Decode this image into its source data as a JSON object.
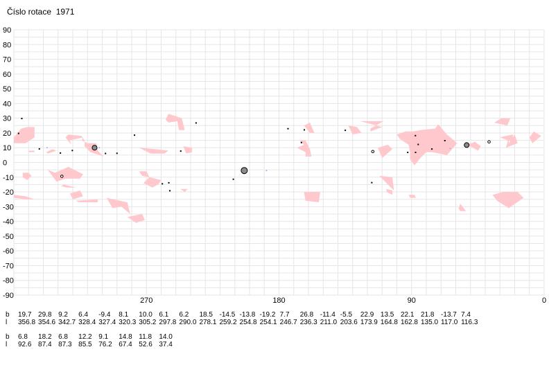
{
  "title": "Číslo rotace  1971",
  "chart_data": {
    "type": "scatter",
    "title": "Číslo rotace  1971",
    "xlabel": "",
    "ylabel": "",
    "xlim": [
      360,
      0
    ],
    "ylim": [
      -90,
      90
    ],
    "x_ticks": [
      "270",
      "180",
      "90",
      "0"
    ],
    "y_ticks": [
      "90",
      "80",
      "70",
      "60",
      "50",
      "40",
      "30",
      "20",
      "10",
      "0",
      "-10",
      "-20",
      "-30",
      "-40",
      "-50",
      "-60",
      "-70",
      "-80",
      "-90"
    ],
    "grid": true,
    "regions_color": "#ffc8cd",
    "regions": [
      {
        "name": "r1",
        "polygon": [
          [
            360,
            17
          ],
          [
            355,
            23
          ],
          [
            351,
            24
          ],
          [
            346,
            24
          ],
          [
            346,
            17
          ],
          [
            352,
            13
          ],
          [
            360,
            13
          ]
        ]
      },
      {
        "name": "r2",
        "polygon": [
          [
            350,
            8
          ],
          [
            346,
            8
          ],
          [
            346,
            7
          ],
          [
            350,
            7
          ]
        ]
      },
      {
        "name": "r3",
        "polygon": [
          [
            354,
            -7
          ],
          [
            350,
            -7
          ],
          [
            348,
            -9
          ],
          [
            351,
            -12
          ],
          [
            354,
            -10
          ]
        ]
      },
      {
        "name": "r4",
        "polygon": [
          [
            360,
            -22
          ],
          [
            352,
            -23
          ],
          [
            346,
            -25
          ],
          [
            352,
            -25
          ],
          [
            360,
            -24
          ]
        ]
      },
      {
        "name": "r5",
        "polygon": [
          [
            338,
            7
          ],
          [
            334,
            9
          ],
          [
            331,
            8
          ],
          [
            337,
            6
          ]
        ]
      },
      {
        "name": "r6",
        "polygon": [
          [
            325,
            17
          ],
          [
            323,
            19
          ],
          [
            314,
            18
          ],
          [
            312,
            15
          ],
          [
            312,
            11
          ],
          [
            308,
            7
          ],
          [
            299,
            4
          ],
          [
            303,
            8
          ],
          [
            304,
            13
          ],
          [
            310,
            13
          ],
          [
            314,
            15
          ],
          [
            313,
            17
          ],
          [
            322,
            15
          ],
          [
            321,
            12
          ]
        ]
      },
      {
        "name": "r7",
        "polygon": [
          [
            337,
            -5
          ],
          [
            331,
            -13
          ],
          [
            325,
            -11
          ],
          [
            315,
            -11
          ],
          [
            313,
            -8
          ],
          [
            319,
            -5
          ],
          [
            323,
            -3
          ],
          [
            332,
            -7
          ]
        ]
      },
      {
        "name": "r8",
        "polygon": [
          [
            328,
            -16
          ],
          [
            324,
            -17
          ],
          [
            318,
            -17
          ],
          [
            326,
            -15
          ]
        ]
      },
      {
        "name": "r9",
        "polygon": [
          [
            322,
            -21
          ],
          [
            315,
            -19
          ],
          [
            313,
            -23
          ],
          [
            320,
            -25
          ]
        ]
      },
      {
        "name": "r10",
        "polygon": [
          [
            318,
            -26
          ],
          [
            303,
            -25
          ],
          [
            303,
            -27
          ],
          [
            316,
            -27
          ]
        ]
      },
      {
        "name": "r11",
        "polygon": [
          [
            297,
            -24
          ],
          [
            283,
            -27
          ],
          [
            281,
            -35
          ],
          [
            287,
            -30
          ],
          [
            293,
            -31
          ]
        ]
      },
      {
        "name": "r12",
        "polygon": [
          [
            283,
            -37
          ],
          [
            273,
            -35
          ],
          [
            271,
            -39
          ],
          [
            277,
            -41
          ]
        ]
      },
      {
        "name": "r13",
        "polygon": [
          [
            275,
            -6
          ],
          [
            270,
            -6
          ],
          [
            268,
            -10
          ],
          [
            273,
            -9
          ]
        ]
      },
      {
        "name": "r14",
        "polygon": [
          [
            272,
            -14
          ],
          [
            266,
            -17
          ],
          [
            262,
            -15
          ],
          [
            260,
            -12
          ],
          [
            268,
            -10
          ]
        ]
      },
      {
        "name": "r15",
        "polygon": [
          [
            275,
            10
          ],
          [
            264,
            9
          ],
          [
            255,
            8
          ],
          [
            258,
            6
          ],
          [
            267,
            6
          ]
        ]
      },
      {
        "name": "r16",
        "polygon": [
          [
            255,
            33
          ],
          [
            246,
            30
          ],
          [
            244,
            22
          ],
          [
            248,
            22
          ],
          [
            249,
            28
          ],
          [
            255,
            27
          ],
          [
            257,
            29
          ]
        ]
      },
      {
        "name": "r17",
        "polygon": [
          [
            245,
            11
          ],
          [
            239,
            10
          ],
          [
            239,
            7
          ],
          [
            243,
            6
          ]
        ]
      },
      {
        "name": "r18",
        "polygon": [
          [
            247,
            -18
          ],
          [
            242,
            -18
          ],
          [
            244,
            -20
          ]
        ]
      },
      {
        "name": "r19",
        "polygon": [
          [
            168,
            10
          ],
          [
            162,
            7
          ],
          [
            162,
            4
          ],
          [
            158,
            4
          ],
          [
            159,
            9
          ],
          [
            162,
            15
          ],
          [
            166,
            15
          ],
          [
            163,
            12
          ]
        ]
      },
      {
        "name": "r20",
        "polygon": [
          [
            163,
            25
          ],
          [
            159,
            27
          ],
          [
            156,
            20
          ],
          [
            159,
            20
          ]
        ]
      },
      {
        "name": "r21",
        "polygon": [
          [
            163,
            -20
          ],
          [
            152,
            -20
          ],
          [
            153,
            -27
          ],
          [
            162,
            -26
          ]
        ]
      },
      {
        "name": "r22",
        "polygon": [
          [
            133,
            25
          ],
          [
            127,
            24
          ],
          [
            124,
            20
          ],
          [
            130,
            19
          ]
        ]
      },
      {
        "name": "r23",
        "polygon": [
          [
            125,
            28
          ],
          [
            109,
            28
          ],
          [
            118,
            23
          ],
          [
            118,
            21
          ],
          [
            110,
            24
          ]
        ]
      },
      {
        "name": "r24",
        "polygon": [
          [
            113,
            10
          ],
          [
            106,
            12
          ],
          [
            103,
            9
          ],
          [
            110,
            3
          ]
        ]
      },
      {
        "name": "r25",
        "polygon": [
          [
            112,
            -9
          ],
          [
            103,
            -10
          ],
          [
            102,
            -19
          ],
          [
            104,
            -17
          ],
          [
            108,
            -13
          ]
        ]
      },
      {
        "name": "r26",
        "polygon": [
          [
            107,
            -18
          ],
          [
            103,
            -19
          ],
          [
            103,
            -22
          ],
          [
            107,
            -20
          ]
        ]
      },
      {
        "name": "r27",
        "polygon": [
          [
            92,
            -22
          ],
          [
            88,
            -22
          ],
          [
            87,
            -24
          ],
          [
            91,
            -24
          ]
        ]
      },
      {
        "name": "r28",
        "polygon": [
          [
            100,
            19
          ],
          [
            94,
            21
          ],
          [
            89,
            21
          ],
          [
            84,
            22
          ],
          [
            74,
            23
          ],
          [
            72,
            26
          ],
          [
            66,
            19
          ],
          [
            59,
            13
          ],
          [
            66,
            5
          ],
          [
            76,
            7
          ],
          [
            80,
            7
          ],
          [
            84,
            3
          ],
          [
            88,
            -2
          ],
          [
            91,
            2
          ],
          [
            91,
            7
          ],
          [
            92,
            12
          ],
          [
            98,
            16
          ]
        ]
      },
      {
        "name": "r29",
        "polygon": [
          [
            61,
            -26
          ],
          [
            58,
            -31
          ],
          [
            57,
            -28
          ],
          [
            53,
            -33
          ],
          [
            57,
            -33
          ]
        ]
      },
      {
        "name": "r30",
        "polygon": [
          [
            52,
            12
          ],
          [
            50,
            11
          ],
          [
            45,
            8
          ],
          [
            43,
            11
          ],
          [
            47,
            14
          ]
        ]
      },
      {
        "name": "r31",
        "polygon": [
          [
            34,
            27
          ],
          [
            29,
            30
          ],
          [
            23,
            30
          ],
          [
            25,
            25
          ]
        ]
      },
      {
        "name": "r32",
        "polygon": [
          [
            24,
            13
          ],
          [
            20,
            19
          ],
          [
            18,
            13
          ],
          [
            26,
            10
          ],
          [
            24,
            17
          ]
        ]
      },
      {
        "name": "r33",
        "polygon": [
          [
            30,
            17
          ],
          [
            22,
            14
          ],
          [
            21,
            19
          ],
          [
            26,
            18
          ]
        ]
      },
      {
        "name": "r34",
        "polygon": [
          [
            10,
            17
          ],
          [
            7,
            21
          ],
          [
            2,
            18
          ],
          [
            8,
            13
          ]
        ]
      },
      {
        "name": "r35",
        "polygon": [
          [
            35,
            -22
          ],
          [
            32,
            -26
          ],
          [
            24,
            -31
          ],
          [
            14,
            -24
          ],
          [
            18,
            -20
          ],
          [
            28,
            -20
          ]
        ]
      }
    ],
    "points": [
      {
        "x": 356.8,
        "y": 19.7,
        "size": "small"
      },
      {
        "x": 354.6,
        "y": 29.8,
        "size": "small"
      },
      {
        "x": 342.7,
        "y": 9.2,
        "size": "small"
      },
      {
        "x": 328.4,
        "y": 6.4,
        "size": "small"
      },
      {
        "x": 327.4,
        "y": -9.4,
        "size": "ring"
      },
      {
        "x": 320.3,
        "y": 8.1,
        "size": "small"
      },
      {
        "x": 305.2,
        "y": 10.0,
        "size": "large"
      },
      {
        "x": 297.8,
        "y": 6.1,
        "size": "small"
      },
      {
        "x": 290.0,
        "y": 6.2,
        "size": "small"
      },
      {
        "x": 278.1,
        "y": 18.5,
        "size": "small"
      },
      {
        "x": 259.2,
        "y": -14.5,
        "size": "small"
      },
      {
        "x": 254.8,
        "y": -13.8,
        "size": "small"
      },
      {
        "x": 254.1,
        "y": -19.2,
        "size": "small"
      },
      {
        "x": 246.7,
        "y": 7.7,
        "size": "small"
      },
      {
        "x": 236.3,
        "y": 26.8,
        "size": "small"
      },
      {
        "x": 211.0,
        "y": -11.4,
        "size": "small"
      },
      {
        "x": 203.6,
        "y": -5.5,
        "size": "xlarge"
      },
      {
        "x": 173.9,
        "y": 22.9,
        "size": "small"
      },
      {
        "x": 164.8,
        "y": 13.5,
        "size": "small"
      },
      {
        "x": 162.8,
        "y": 22.1,
        "size": "small"
      },
      {
        "x": 135.0,
        "y": 21.8,
        "size": "small"
      },
      {
        "x": 117.0,
        "y": -13.7,
        "size": "small"
      },
      {
        "x": 116.3,
        "y": 7.4,
        "size": "ring"
      },
      {
        "x": 92.6,
        "y": 6.8,
        "size": "small"
      },
      {
        "x": 87.4,
        "y": 18.2,
        "size": "small"
      },
      {
        "x": 87.3,
        "y": 6.8,
        "size": "small"
      },
      {
        "x": 85.5,
        "y": 12.2,
        "size": "small"
      },
      {
        "x": 76.2,
        "y": 9.1,
        "size": "small"
      },
      {
        "x": 67.4,
        "y": 14.8,
        "size": "small"
      },
      {
        "x": 52.6,
        "y": 11.8,
        "size": "large"
      },
      {
        "x": 37.4,
        "y": 14.0,
        "size": "ring"
      }
    ],
    "faint_points": [
      {
        "x": 337.5,
        "y": 10.0
      },
      {
        "x": 302.0,
        "y": 10.0
      },
      {
        "x": 188.5,
        "y": -5.5
      },
      {
        "x": 63.8,
        "y": 9.5
      }
    ],
    "table_rows": [
      {
        "b_label": "b",
        "l_label": "l",
        "b": [
          "19.7",
          "29.8",
          "9.2",
          "6.4",
          "-9.4",
          "8.1",
          "10.0",
          "6.1",
          "6.2",
          "18.5",
          "-14.5",
          "-13.8",
          "-19.2",
          "7.7",
          "26.8",
          "-11.4",
          "-5.5",
          "22.9",
          "13.5",
          "22.1",
          "21.8",
          "-13.7",
          "7.4"
        ],
        "l": [
          "356.8",
          "354.6",
          "342.7",
          "328.4",
          "327.4",
          "320.3",
          "305.2",
          "297.8",
          "290.0",
          "278.1",
          "259.2",
          "254.8",
          "254.1",
          "246.7",
          "236.3",
          "211.0",
          "203.6",
          "173.9",
          "164.8",
          "162.8",
          "135.0",
          "117.0",
          "116.3"
        ]
      },
      {
        "b_label": "b",
        "l_label": "l",
        "b": [
          "6.8",
          "18.2",
          "6.8",
          "12.2",
          "9.1",
          "14.8",
          "11.8",
          "14.0"
        ],
        "l": [
          "92.6",
          "87.4",
          "87.3",
          "85.5",
          "76.2",
          "67.4",
          "52.6",
          "37.4"
        ]
      }
    ]
  }
}
